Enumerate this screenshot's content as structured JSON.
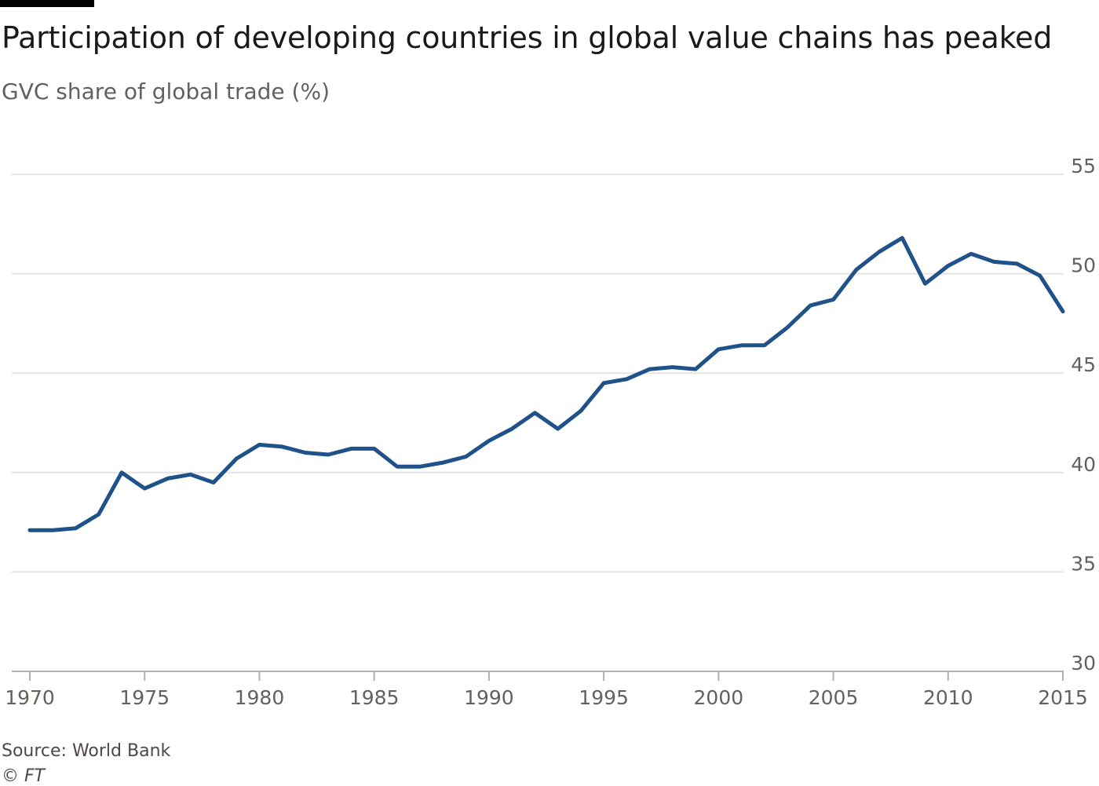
{
  "chart_data": {
    "type": "line",
    "title": "Participation of developing countries in global value chains has peaked",
    "subtitle": "GVC share of global trade (%)",
    "xlabel": "",
    "ylabel": "",
    "xlim": [
      1970,
      2015
    ],
    "ylim": [
      30,
      55
    ],
    "x_ticks": [
      1970,
      1975,
      1980,
      1985,
      1990,
      1995,
      2000,
      2005,
      2010,
      2015
    ],
    "y_ticks": [
      30,
      35,
      40,
      45,
      50,
      55
    ],
    "grid": "horizontal",
    "series": [
      {
        "color": "#1f5289",
        "x": [
          1970,
          1971,
          1972,
          1973,
          1974,
          1975,
          1976,
          1977,
          1978,
          1979,
          1980,
          1981,
          1982,
          1983,
          1984,
          1985,
          1986,
          1987,
          1988,
          1989,
          1990,
          1991,
          1992,
          1993,
          1994,
          1995,
          1996,
          1997,
          1998,
          1999,
          2000,
          2001,
          2002,
          2003,
          2004,
          2005,
          2006,
          2007,
          2008,
          2009,
          2010,
          2011,
          2012,
          2013,
          2014,
          2015
        ],
        "values": [
          37.1,
          37.1,
          37.2,
          37.9,
          40.0,
          39.2,
          39.7,
          39.9,
          39.5,
          40.7,
          41.4,
          41.3,
          41.0,
          40.9,
          41.2,
          41.2,
          40.3,
          40.3,
          40.5,
          40.8,
          41.6,
          42.2,
          43.0,
          42.2,
          43.1,
          44.5,
          44.7,
          45.2,
          45.3,
          45.2,
          46.2,
          46.4,
          46.4,
          47.3,
          48.4,
          48.7,
          50.2,
          51.1,
          51.8,
          49.5,
          50.4,
          51.0,
          50.6,
          50.5,
          49.9,
          48.1
        ]
      }
    ]
  },
  "footer": {
    "source": "Source: World Bank",
    "credit": "© FT"
  },
  "colors": {
    "line": "#1f5289",
    "grid": "#e6e3e1",
    "baseline": "#b3b0ad",
    "tick_text": "#66605c"
  }
}
